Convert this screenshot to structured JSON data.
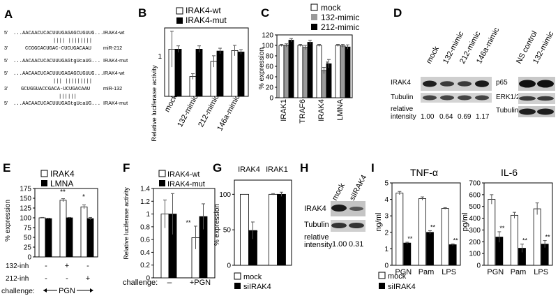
{
  "panels": {
    "A": {
      "letter": "A",
      "rows": [
        {
          "left": "5'",
          "seq": "...AACAACUCACUUUGAGAGCUGUUG...",
          "name": "IRAK4-wt"
        },
        {
          "left": "",
          "seq": "||||  ||||||||",
          "name": ""
        },
        {
          "left": "3'",
          "seq": "CCGGCACUGAC-CUCUGACAAU",
          "name": "miR-212"
        },
        {
          "left": "5'",
          "seq": "...AACAACUCACUUUGAGtgUcaUG...",
          "name": "IRAK4-mut"
        },
        {
          "left": "5'",
          "seq": "...AACAACUCACUUUGAGAGCUGUUG...",
          "name": "IRAK4-wt"
        },
        {
          "left": "",
          "seq": "|||  |||||||||",
          "name": ""
        },
        {
          "left": "3'",
          "seq": "GCUGGUACCGACA-UCUGACAAU",
          "name": "miR-132"
        },
        {
          "left": "",
          "seq": "||||||",
          "name": ""
        },
        {
          "left": "5'",
          "seq": "...AACAACUCACUUUGAGtgUcaUG...",
          "name": "IRAK4-mut"
        }
      ]
    },
    "B": {
      "letter": "B",
      "legend": [
        "IRAK4-wt",
        "IRAK4-mut"
      ],
      "ylabel": "Relative luciferase activity",
      "ytick": "1",
      "categories": [
        "mock",
        "132-mimic",
        "212-mimic",
        "146a-mimic"
      ],
      "sig": [
        "**",
        "*"
      ]
    },
    "C": {
      "letter": "C",
      "legend": [
        "mock",
        "132-mimic",
        "212-mimic"
      ],
      "ylabel": "% expression",
      "yticks": [
        "0",
        "20",
        "40",
        "60",
        "80",
        "100",
        "120"
      ],
      "categories": [
        "IRAK1",
        "TRAF6",
        "IRAK4",
        "LMNA"
      ],
      "sig": [
        "*",
        "*"
      ]
    },
    "D": {
      "letter": "D",
      "lanes_left": [
        "mock",
        "132-mimic",
        "212-mimic",
        "146a-mimic"
      ],
      "lanes_right": [
        "NS control",
        "132-mimic"
      ],
      "rows_left": [
        "IRAK4",
        "Tubulin",
        "relative",
        "intensity"
      ],
      "rows_right": [
        "p65",
        "ERK1/2",
        "Tubulin"
      ],
      "intensity": [
        "1.00",
        "0.64",
        "0.69",
        "1.17"
      ]
    },
    "E": {
      "letter": "E",
      "legend": [
        "IRAK4",
        "LMNA"
      ],
      "ylabel": "% expression",
      "yticks": [
        "0",
        "25",
        "50",
        "75",
        "100",
        "125",
        "150",
        "175"
      ],
      "rows": [
        {
          "label": "132-inh",
          "marks": [
            "-",
            "+",
            "-"
          ]
        },
        {
          "label": "212-inh",
          "marks": [
            "-",
            "-",
            "+"
          ]
        }
      ],
      "challenge_label": "challenge:",
      "challenge_value": "PGN",
      "sig": [
        "**",
        "*"
      ]
    },
    "F": {
      "letter": "F",
      "legend": [
        "IRAK4-wt",
        "IRAK4-mut"
      ],
      "ylabel": "Relative luciferase activity",
      "yticks": [
        "0",
        "0.2",
        "0.4",
        "0.6",
        "0.8",
        "1",
        "1.2",
        "1.4"
      ],
      "challenge_label": "challenge:",
      "categories": [
        "–",
        "+PGN"
      ],
      "sig": [
        "**"
      ]
    },
    "G": {
      "letter": "G",
      "titles": [
        "IRAK4",
        "IRAK1"
      ],
      "ylabel": "% expression",
      "yticks": [
        "0",
        "50",
        "100"
      ],
      "legend": [
        "mock",
        "siIRAK4"
      ],
      "sig": [
        "**"
      ]
    },
    "H": {
      "letter": "H",
      "lanes": [
        "mock",
        "siIRAK4"
      ],
      "rows": [
        "IRAK4",
        "Tubulin",
        "relative",
        "intensity"
      ],
      "intensity": [
        "1.00",
        "0.31"
      ]
    },
    "I": {
      "letter": "I",
      "left_title": "TNF-α",
      "right_title": "IL-6",
      "left_ylabel": "ng/ml",
      "right_ylabel": "pg/ml",
      "left_yticks": [
        "0",
        "1",
        "2",
        "3",
        "4",
        "5"
      ],
      "right_yticks": [
        "0",
        "100",
        "200",
        "300",
        "400",
        "500",
        "600",
        "700"
      ],
      "categories": [
        "PGN",
        "Pam",
        "LPS"
      ],
      "legend": [
        "mock",
        "siIRAK4"
      ],
      "sig": [
        "**"
      ]
    }
  },
  "chart_data": [
    {
      "panel": "B",
      "type": "bar",
      "categories": [
        "mock",
        "132-mimic",
        "212-mimic",
        "146a-mimic"
      ],
      "series": [
        {
          "name": "IRAK4-wt",
          "values": [
            1.0,
            0.42,
            0.74,
            0.97
          ]
        },
        {
          "name": "IRAK4-mut",
          "values": [
            1.0,
            1.0,
            0.96,
            0.94
          ]
        }
      ],
      "errors": [
        [
          0.38,
          0.06,
          0.12,
          0.11
        ],
        [
          0.07,
          0.07,
          0.06,
          0.05
        ]
      ],
      "ylim": [
        0,
        1.45
      ]
    },
    {
      "panel": "C",
      "type": "bar",
      "categories": [
        "IRAK1",
        "TRAF6",
        "IRAK4",
        "LMNA"
      ],
      "series": [
        {
          "name": "mock",
          "values": [
            100,
            100,
            100,
            100
          ]
        },
        {
          "name": "132-mimic",
          "values": [
            100,
            96,
            52,
            99
          ]
        },
        {
          "name": "212-mimic",
          "values": [
            110,
            106,
            65,
            97
          ]
        }
      ],
      "errors": [
        [
          2,
          2,
          2,
          2
        ],
        [
          3,
          4,
          6,
          3
        ],
        [
          3,
          4,
          8,
          4
        ]
      ],
      "ylim": [
        0,
        120
      ]
    },
    {
      "panel": "E",
      "type": "bar",
      "categories": [
        "1",
        "2",
        "3"
      ],
      "series": [
        {
          "name": "IRAK4",
          "values": [
            100,
            145,
            128
          ]
        },
        {
          "name": "LMNA",
          "values": [
            98,
            100,
            98
          ]
        }
      ],
      "errors": [
        [
          1,
          4,
          5
        ],
        [
          1,
          1,
          3
        ]
      ],
      "ylim": [
        0,
        175
      ]
    },
    {
      "panel": "F",
      "type": "bar",
      "categories": [
        "–",
        "+PGN"
      ],
      "series": [
        {
          "name": "IRAK4-wt",
          "values": [
            1.0,
            0.63
          ]
        },
        {
          "name": "IRAK4-mut",
          "values": [
            1.0,
            0.96
          ]
        }
      ],
      "errors": [
        [
          0.22,
          0.18
        ],
        [
          0.32,
          0.2
        ]
      ],
      "ylim": [
        0,
        1.4
      ]
    },
    {
      "panel": "G",
      "type": "bar",
      "categories": [
        "IRAK4",
        "IRAK1"
      ],
      "series": [
        {
          "name": "mock",
          "values": [
            100,
            100
          ]
        },
        {
          "name": "siIRAK4",
          "values": [
            49,
            100
          ]
        }
      ],
      "errors": [
        [
          0,
          1
        ],
        [
          12,
          3
        ]
      ],
      "ylim": [
        0,
        120
      ]
    },
    {
      "panel": "I-left",
      "type": "bar",
      "categories": [
        "PGN",
        "Pam",
        "LPS"
      ],
      "series": [
        {
          "name": "mock",
          "values": [
            4.38,
            4.05,
            3.45
          ]
        },
        {
          "name": "siIRAK4",
          "values": [
            1.35,
            2.0,
            1.25
          ]
        }
      ],
      "errors": [
        [
          0.1,
          0.1,
          0.05
        ],
        [
          0.05,
          0.1,
          0.05
        ]
      ],
      "ylim": [
        0,
        5
      ]
    },
    {
      "panel": "I-right",
      "type": "bar",
      "categories": [
        "PGN",
        "Pam",
        "LPS"
      ],
      "series": [
        {
          "name": "mock",
          "values": [
            560,
            425,
            480
          ]
        },
        {
          "name": "siIRAK4",
          "values": [
            240,
            145,
            180
          ]
        }
      ],
      "errors": [
        [
          40,
          25,
          50
        ],
        [
          45,
          35,
          30
        ]
      ],
      "ylim": [
        0,
        700
      ]
    }
  ]
}
